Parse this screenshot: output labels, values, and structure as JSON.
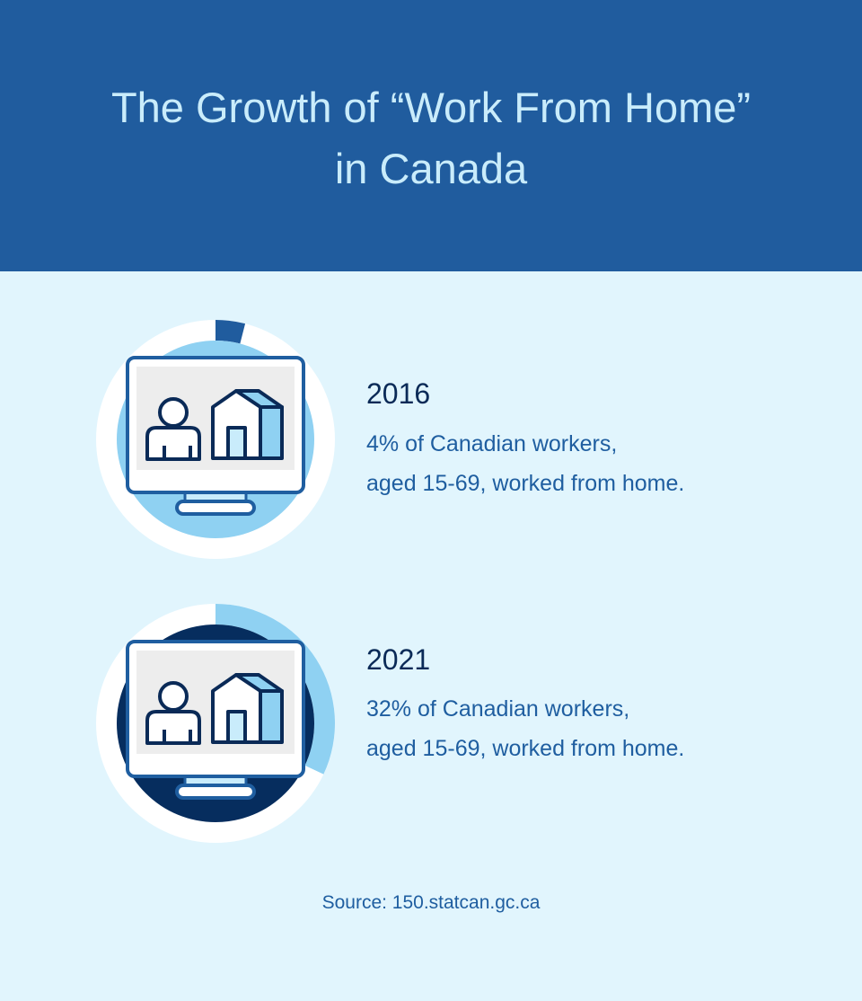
{
  "header": {
    "title_line1": "The Growth of “Work From Home”",
    "title_line2": "in Canada"
  },
  "stats": [
    {
      "year": "2016",
      "line1": "4% of Canadian workers,",
      "line2": "aged 15-69, worked from home.",
      "percent": 4,
      "inner_color": "#8fd1f2",
      "arc_color": "#205c9e"
    },
    {
      "year": "2021",
      "line1": "32% of Canadian workers,",
      "line2": "aged 15-69, worked from home.",
      "percent": 32,
      "inner_color": "#062d5e",
      "arc_color": "#8fd1f2"
    }
  ],
  "icons": [
    "monitor-icon",
    "person-icon",
    "house-icon"
  ],
  "source": "Source: 150.statcan.gc.ca"
}
